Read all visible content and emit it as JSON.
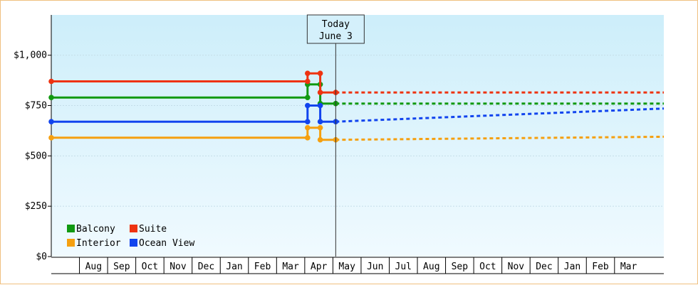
{
  "chart_data": {
    "type": "line",
    "yticks": [
      {
        "value": 0,
        "label": "$0"
      },
      {
        "value": 250,
        "label": "$250"
      },
      {
        "value": 500,
        "label": "$500"
      },
      {
        "value": 750,
        "label": "$750"
      },
      {
        "value": 1000,
        "label": "$1,000"
      }
    ],
    "ylim": [
      0,
      1200
    ],
    "xlim": [
      7.0,
      28.75
    ],
    "months": [
      "Aug",
      "Sep",
      "Oct",
      "Nov",
      "Dec",
      "Jan",
      "Feb",
      "Mar",
      "Apr",
      "May",
      "Jun",
      "Jul",
      "Aug",
      "Sep",
      "Oct",
      "Nov",
      "Dec",
      "Jan",
      "Feb",
      "Mar"
    ],
    "today": {
      "line1": "Today",
      "line2": "June 3",
      "x": 17.1
    },
    "grid": true,
    "legend_position": "bottom-left",
    "series": [
      {
        "name": "Balcony",
        "color": "#119911",
        "history": [
          [
            7.0,
            790
          ],
          [
            16.1,
            790
          ],
          [
            16.1,
            855
          ],
          [
            16.55,
            855
          ],
          [
            16.55,
            760
          ],
          [
            17.1,
            760
          ]
        ],
        "forecast": [
          [
            17.1,
            760
          ],
          [
            28.75,
            760
          ]
        ]
      },
      {
        "name": "Suite",
        "color": "#ee3311",
        "history": [
          [
            7.0,
            870
          ],
          [
            16.1,
            870
          ],
          [
            16.1,
            910
          ],
          [
            16.55,
            910
          ],
          [
            16.55,
            815
          ],
          [
            17.1,
            815
          ]
        ],
        "forecast": [
          [
            17.1,
            815
          ],
          [
            28.75,
            815
          ]
        ]
      },
      {
        "name": "Interior",
        "color": "#f5a010",
        "history": [
          [
            7.0,
            590
          ],
          [
            16.1,
            590
          ],
          [
            16.1,
            640
          ],
          [
            16.55,
            640
          ],
          [
            16.55,
            580
          ],
          [
            17.1,
            580
          ]
        ],
        "forecast": [
          [
            17.1,
            580
          ],
          [
            28.75,
            595
          ]
        ]
      },
      {
        "name": "Ocean View",
        "color": "#1144ee",
        "history": [
          [
            7.0,
            670
          ],
          [
            16.1,
            670
          ],
          [
            16.1,
            750
          ],
          [
            16.55,
            750
          ],
          [
            16.55,
            670
          ],
          [
            17.1,
            670
          ]
        ],
        "forecast": [
          [
            17.1,
            670
          ],
          [
            28.75,
            735
          ]
        ]
      }
    ]
  }
}
